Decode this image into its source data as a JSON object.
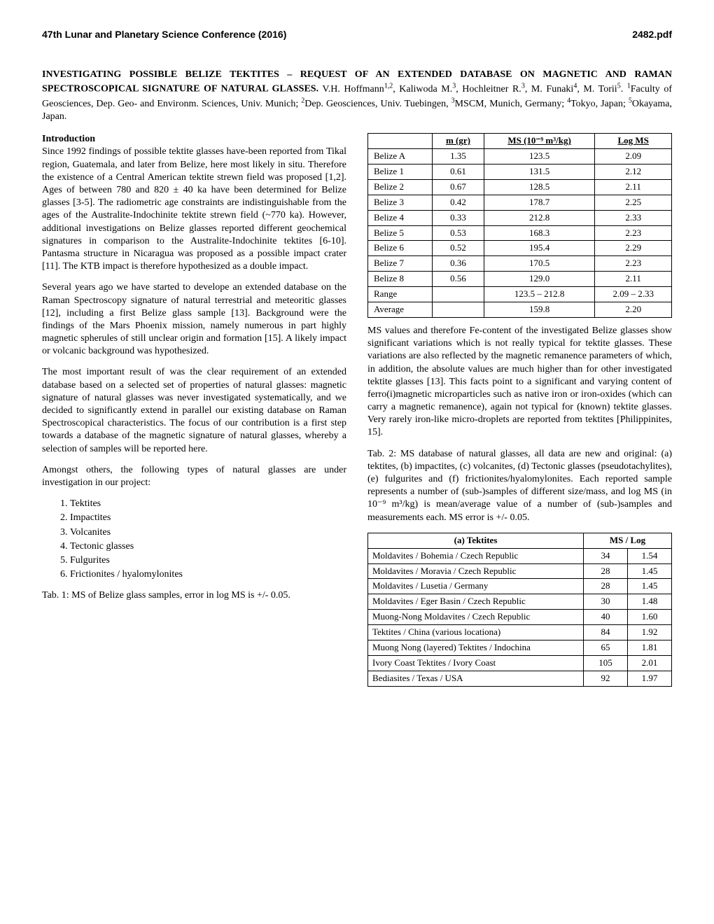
{
  "header": {
    "left": "47th Lunar and Planetary Science Conference (2016)",
    "right": "2482.pdf"
  },
  "title": "INVESTIGATING POSSIBLE BELIZE TEKTITES – REQUEST OF AN EXTENDED DATABASE ON MAGNETIC AND RAMAN SPECTROSCOPICAL SIGNATURE OF NATURAL GLASSES.",
  "authors": "V.H. Hoffmann",
  "authors_sup1": "1,2",
  "authors_2": ", Kaliwoda M.",
  "authors_sup2": "3",
  "authors_3": ", Hochleitner R.",
  "authors_sup3": "3",
  "authors_4": ", M. Funaki",
  "authors_sup4": "4",
  "authors_5": ", M. Torii",
  "authors_sup5": "5",
  "authors_6": ". ",
  "aff_sup1": "1",
  "aff_1": "Faculty of Geosciences, Dep. Geo- and Environm. Sciences, Univ. Munich; ",
  "aff_sup2": "2",
  "aff_2": "Dep. Geosciences, Univ. Tuebingen, ",
  "aff_sup3": "3",
  "aff_3": "MSCM, Munich, Germany; ",
  "aff_sup4": "4",
  "aff_4": "Tokyo, Japan; ",
  "aff_sup5": "5",
  "aff_5": "Okayama, Japan.",
  "intro_head": "Introduction",
  "intro_p1": "Since 1992 findings of possible tektite glasses have-been reported from Tikal region, Guatemala, and later from Belize, here most likely in situ. Therefore the existence of a Central American tektite strewn field was proposed [1,2]. Ages of between 780 and 820 ± 40 ka have been determined for Belize glasses [3-5]. The radiometric age constraints are indistinguishable from the ages of the Australite-Indochinite tektite strewn field (~770 ka). However, additional investigations on Belize glasses reported different geochemical signatures in comparison to the Australite-Indochinite tektites [6-10]. Pantasma structure in Nicaragua was proposed as a possible impact crater [11]. The KTB impact is therefore hypothesized as a double impact.",
  "intro_p2": "Several years ago we have started to develope an extended database on the Raman Spectroscopy signature of natural terrestrial and meteoritic glasses [12], including a first Belize glass sample [13]. Background were the findings of the Mars Phoenix mission, namely numerous in part highly magnetic spherules of still unclear origin and formation [15]. A likely impact or volcanic background was hypothesized.",
  "intro_p3": "The most important result of was the clear requirement of an extended database based on a selected set of properties of natural glasses: magnetic signature of natural glasses was never investigated systematically, and we decided to significantly extend in parallel our existing database on Raman Spectroscopical characteristics. The focus of our contribution is a first step towards a database of the magnetic signature of natural glasses, whereby a selection of samples will be reported here.",
  "intro_p4": "Amongst others, the following types of natural glasses are under investigation in our project:",
  "invest_list": [
    "Tektites",
    "Impactites",
    "Volcanites",
    "Tectonic glasses",
    "Fulgurites",
    "Frictionites / hyalomylonites"
  ],
  "tab1_caption": "Tab. 1: MS of Belize glass samples, error in log MS is +/- 0.05.",
  "tab1": {
    "headers": [
      "",
      "m (gr)",
      "MS (10⁻⁹ m³/kg)",
      "Log MS"
    ],
    "rows": [
      [
        "Belize A",
        "1.35",
        "123.5",
        "2.09"
      ],
      [
        "Belize 1",
        "0.61",
        "131.5",
        "2.12"
      ],
      [
        "Belize 2",
        "0.67",
        "128.5",
        "2.11"
      ],
      [
        "Belize 3",
        "0.42",
        "178.7",
        "2.25"
      ],
      [
        "Belize 4",
        "0.33",
        "212.8",
        "2.33"
      ],
      [
        "Belize 5",
        "0.53",
        "168.3",
        "2.23"
      ],
      [
        "Belize 6",
        "0.52",
        "195.4",
        "2.29"
      ],
      [
        "Belize 7",
        "0.36",
        "170.5",
        "2.23"
      ],
      [
        "Belize 8",
        "0.56",
        "129.0",
        "2.11"
      ],
      [
        "Range",
        "",
        "123.5 – 212.8",
        "2.09 – 2.33"
      ],
      [
        "Average",
        "",
        "159.8",
        "2.20"
      ]
    ]
  },
  "right_p1": "MS values and therefore Fe-content of the investigated Belize glasses show significant variations which is not really typical for tektite glasses. These variations are also reflected by the magnetic remanence parameters of which, in addition, the absolute values are much higher than for other investigated tektite glasses [13]. This facts point to a significant and varying content of ferro(i)magnetic microparticles such as native iron or iron-oxides (which can carry a magnetic remanence), again not typical for (known) tektite glasses. Very rarely iron-like micro-droplets are reported from tektites [Philippinites, 15].",
  "right_p2": "Tab. 2: MS database of natural glasses, all data are new and original: (a) tektites, (b) impactites, (c) volcanites, (d) Tectonic glasses (pseudotachylites), (e) fulgurites and (f) frictionites/hyalomylonites. Each reported sample represents a number of (sub-)samples of different size/mass, and log MS (in 10⁻⁹ m³/kg) is mean/average value of a number of (sub-)samples and measurements each. MS error is +/- 0.05.",
  "tab2": {
    "headers": [
      "(a) Tektites",
      "MS / Log"
    ],
    "rows": [
      [
        "Moldavites / Bohemia / Czech Republic",
        "34",
        "1.54"
      ],
      [
        "Moldavites / Moravia / Czech Republic",
        "28",
        "1.45"
      ],
      [
        "Moldavites / Lusetia / Germany",
        "28",
        "1.45"
      ],
      [
        "Moldavites / Eger Basin / Czech Republic",
        "30",
        "1.48"
      ],
      [
        "Muong-Nong Moldavites / Czech Republic",
        "40",
        "1.60"
      ],
      [
        "Tektites / China (various locationa)",
        "84",
        "1.92"
      ],
      [
        "Muong Nong (layered) Tektites / Indochina",
        "65",
        "1.81"
      ],
      [
        "Ivory Coast Tektites / Ivory Coast",
        "105",
        "2.01"
      ],
      [
        "Bediasites / Texas / USA",
        "92",
        "1.97"
      ]
    ]
  }
}
